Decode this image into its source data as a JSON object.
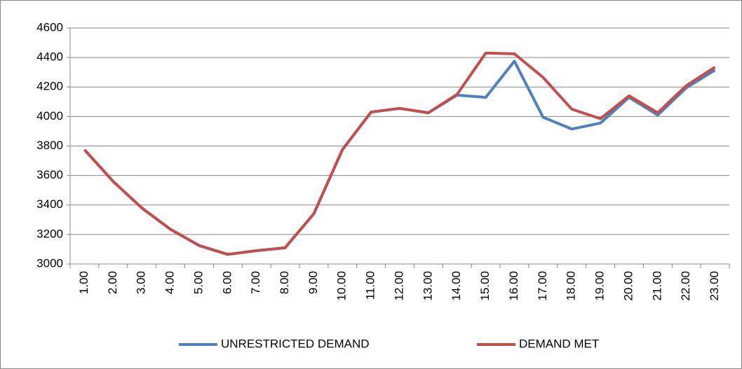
{
  "chart_data": {
    "type": "line",
    "categories": [
      "1.00",
      "2.00",
      "3.00",
      "4.00",
      "5.00",
      "6.00",
      "7.00",
      "8.00",
      "9.00",
      "10.00",
      "11.00",
      "12.00",
      "13.00",
      "14.00",
      "15.00",
      "16.00",
      "17.00",
      "18.00",
      "19.00",
      "20.00",
      "21.00",
      "22.00",
      "23.00"
    ],
    "series": [
      {
        "name": "UNRESTRICTED DEMAND",
        "color": "#4f81bd",
        "values": [
          3775,
          3560,
          3380,
          3235,
          3125,
          3065,
          3090,
          3110,
          3340,
          3775,
          4030,
          4055,
          4025,
          4145,
          4130,
          4375,
          3995,
          3915,
          3955,
          4130,
          4010,
          4195,
          4315
        ]
      },
      {
        "name": "DEMAND MET",
        "color": "#c0504d",
        "values": [
          3775,
          3560,
          3380,
          3235,
          3125,
          3065,
          3090,
          3110,
          3340,
          3775,
          4030,
          4055,
          4025,
          4150,
          4430,
          4425,
          4265,
          4050,
          3985,
          4140,
          4025,
          4210,
          4335
        ]
      }
    ],
    "ylim": [
      3000,
      4600
    ],
    "yticks": [
      3000,
      3200,
      3400,
      3600,
      3800,
      4000,
      4200,
      4400,
      4600
    ],
    "grid": true,
    "legend": "bottom"
  }
}
